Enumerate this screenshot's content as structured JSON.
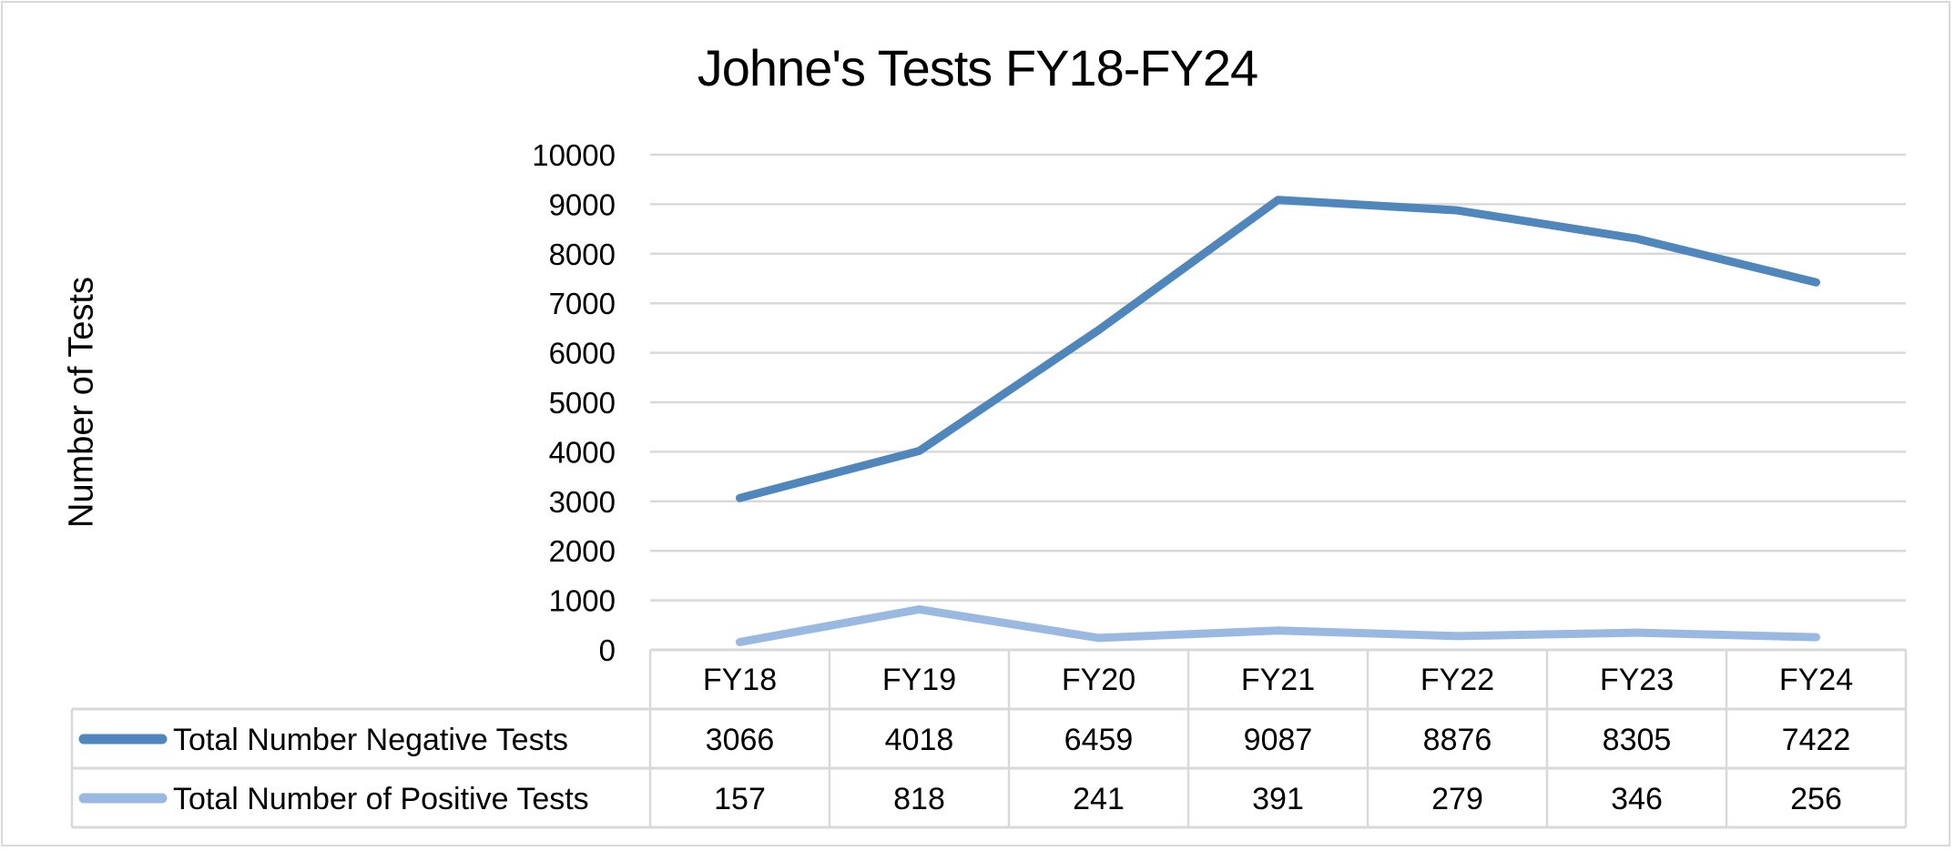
{
  "chart": {
    "title": "Johne's Tests FY18-FY24",
    "ylabel": "Number of Tests"
  },
  "chart_data": {
    "type": "line",
    "title": "Johne's Tests FY18-FY24",
    "xlabel": "",
    "ylabel": "Number of Tests",
    "ylim": [
      0,
      10000
    ],
    "yticks": [
      "0",
      "1000",
      "2000",
      "3000",
      "4000",
      "5000",
      "6000",
      "7000",
      "8000",
      "9000",
      "10000"
    ],
    "grid": true,
    "legend_position": "data-table",
    "categories": [
      "FY18",
      "FY19",
      "FY20",
      "FY21",
      "FY22",
      "FY23",
      "FY24"
    ],
    "series": [
      {
        "name": "Total Number Negative Tests",
        "color": "#4f86bb",
        "values": [
          3066,
          4018,
          6459,
          9087,
          8876,
          8305,
          7422
        ]
      },
      {
        "name": "Total Number of Positive Tests",
        "color": "#9ab9e0",
        "values": [
          157,
          818,
          241,
          391,
          279,
          346,
          256
        ]
      }
    ]
  }
}
